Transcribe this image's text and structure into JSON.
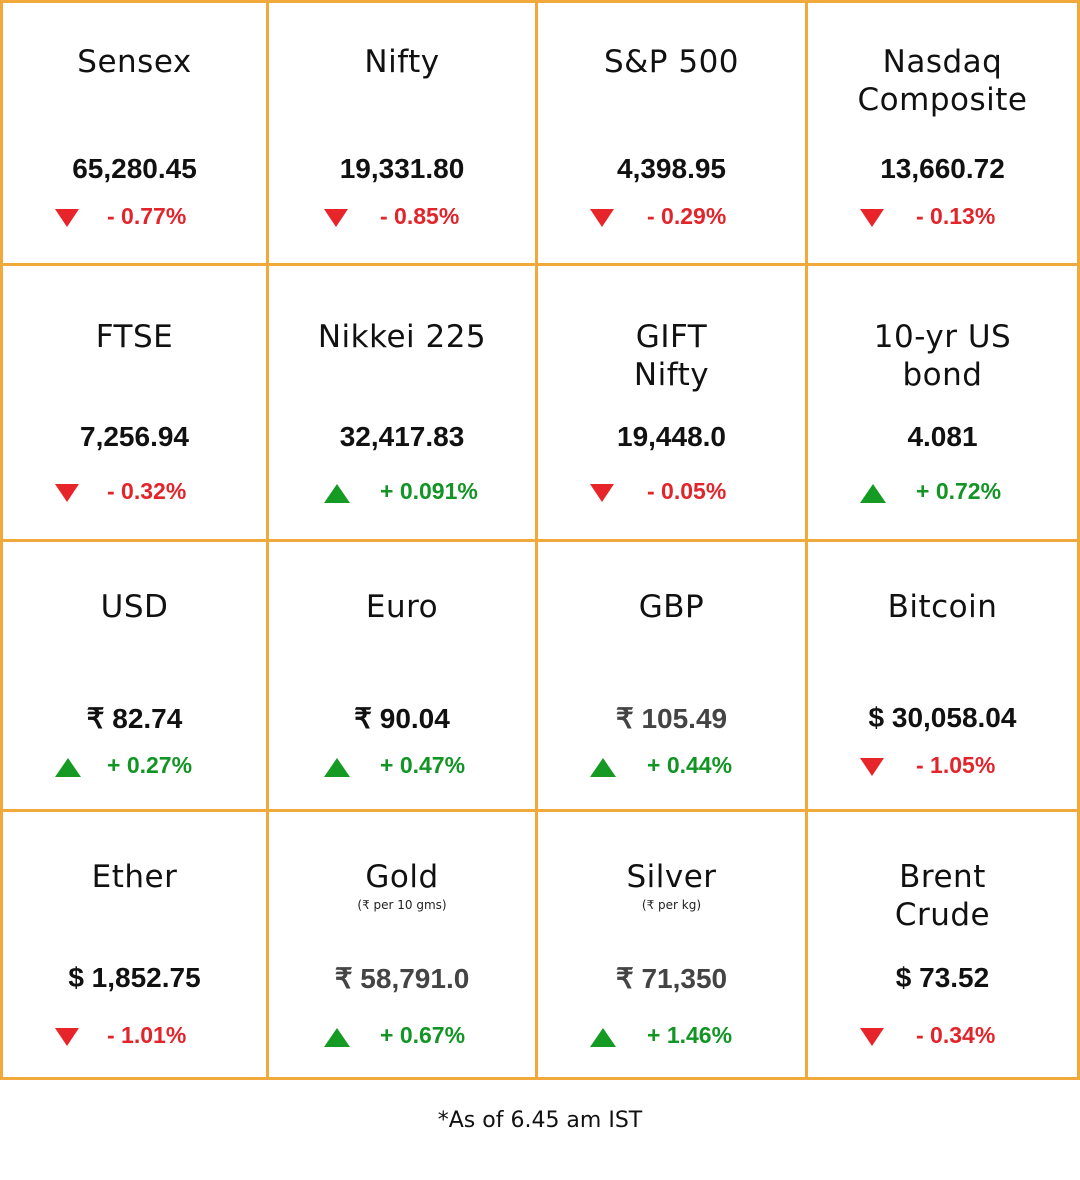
{
  "colors": {
    "border": "#f2a93b",
    "down": "#e2242b",
    "up": "#129524"
  },
  "tiles": [
    {
      "name": "Sensex",
      "subtitle": "",
      "value": "65,280.45",
      "change": "- 0.77%",
      "direction": "down",
      "icon": "down-triangle-icon"
    },
    {
      "name": "Nifty",
      "subtitle": "",
      "value": "19,331.80",
      "change": "- 0.85%",
      "direction": "down",
      "icon": "down-triangle-icon"
    },
    {
      "name": "S&P 500",
      "subtitle": "",
      "value": "4,398.95",
      "change": "- 0.29%",
      "direction": "down",
      "icon": "down-triangle-icon"
    },
    {
      "name": "Nasdaq\nComposite",
      "subtitle": "",
      "value": "13,660.72",
      "change": "- 0.13%",
      "direction": "down",
      "icon": "down-triangle-icon"
    },
    {
      "name": "FTSE",
      "subtitle": "",
      "value": "7,256.94",
      "change": "- 0.32%",
      "direction": "down",
      "icon": "down-triangle-icon"
    },
    {
      "name": "Nikkei 225",
      "subtitle": "",
      "value": "32,417.83",
      "change": "+ 0.091%",
      "direction": "up",
      "icon": "up-triangle-icon"
    },
    {
      "name": "GIFT\nNifty",
      "subtitle": "",
      "value": "19,448.0",
      "change": "- 0.05%",
      "direction": "down",
      "icon": "down-triangle-icon"
    },
    {
      "name": "10-yr US\nbond",
      "subtitle": "",
      "value": "4.081",
      "change": "+ 0.72%",
      "direction": "up",
      "icon": "up-triangle-icon"
    },
    {
      "name": "USD",
      "subtitle": "",
      "value": "₹ 82.74",
      "change": "+ 0.27%",
      "direction": "up",
      "icon": "up-triangle-icon"
    },
    {
      "name": "Euro",
      "subtitle": "",
      "value": "₹ 90.04",
      "change": "+ 0.47%",
      "direction": "up",
      "icon": "up-triangle-icon"
    },
    {
      "name": "GBP",
      "subtitle": "",
      "value": "₹ 105.49",
      "change": "+ 0.44%",
      "direction": "up",
      "icon": "up-triangle-icon"
    },
    {
      "name": "Bitcoin",
      "subtitle": "",
      "value": "$ 30,058.04",
      "change": "- 1.05%",
      "direction": "down",
      "icon": "down-triangle-icon"
    },
    {
      "name": "Ether",
      "subtitle": "",
      "value": "$ 1,852.75",
      "change": "- 1.01%",
      "direction": "down",
      "icon": "down-triangle-icon"
    },
    {
      "name": "Gold",
      "subtitle": "(₹ per 10 gms)",
      "value": "₹ 58,791.0",
      "change": "+ 0.67%",
      "direction": "up",
      "icon": "up-triangle-icon"
    },
    {
      "name": "Silver",
      "subtitle": "(₹ per kg)",
      "value": "₹ 71,350",
      "change": "+ 1.46%",
      "direction": "up",
      "icon": "up-triangle-icon"
    },
    {
      "name": "Brent\nCrude",
      "subtitle": "",
      "value": "$ 73.52",
      "change": "- 0.34%",
      "direction": "down",
      "icon": "down-triangle-icon"
    }
  ],
  "footer": "*As of 6.45 am IST"
}
